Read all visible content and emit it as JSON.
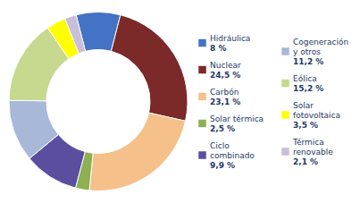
{
  "chart_data": {
    "type": "donut",
    "categories": [
      "Hidráulica",
      "Nuclear",
      "Carbón",
      "Solar térmica",
      "Ciclo\ncombinado",
      "Cogeneración\ny otros",
      "Eólica",
      "Solar\nfotovoltaica",
      "Térmica\nrenovable"
    ],
    "values": [
      8.0,
      24.5,
      23.1,
      2.5,
      9.9,
      11.2,
      15.2,
      3.5,
      2.1
    ],
    "value_labels": [
      "8 %",
      "24,5 %",
      "23,1 %",
      "2,5 %",
      "9,9 %",
      "11,2 %",
      "15,2 %",
      "3,5 %",
      "2,1 %"
    ],
    "colors": [
      "#4472C4",
      "#7B2929",
      "#F5C08A",
      "#8DB050",
      "#5B4E9E",
      "#A8B8D8",
      "#C6D98F",
      "#FFFF00",
      "#C8BFD8"
    ],
    "legend": "right"
  }
}
